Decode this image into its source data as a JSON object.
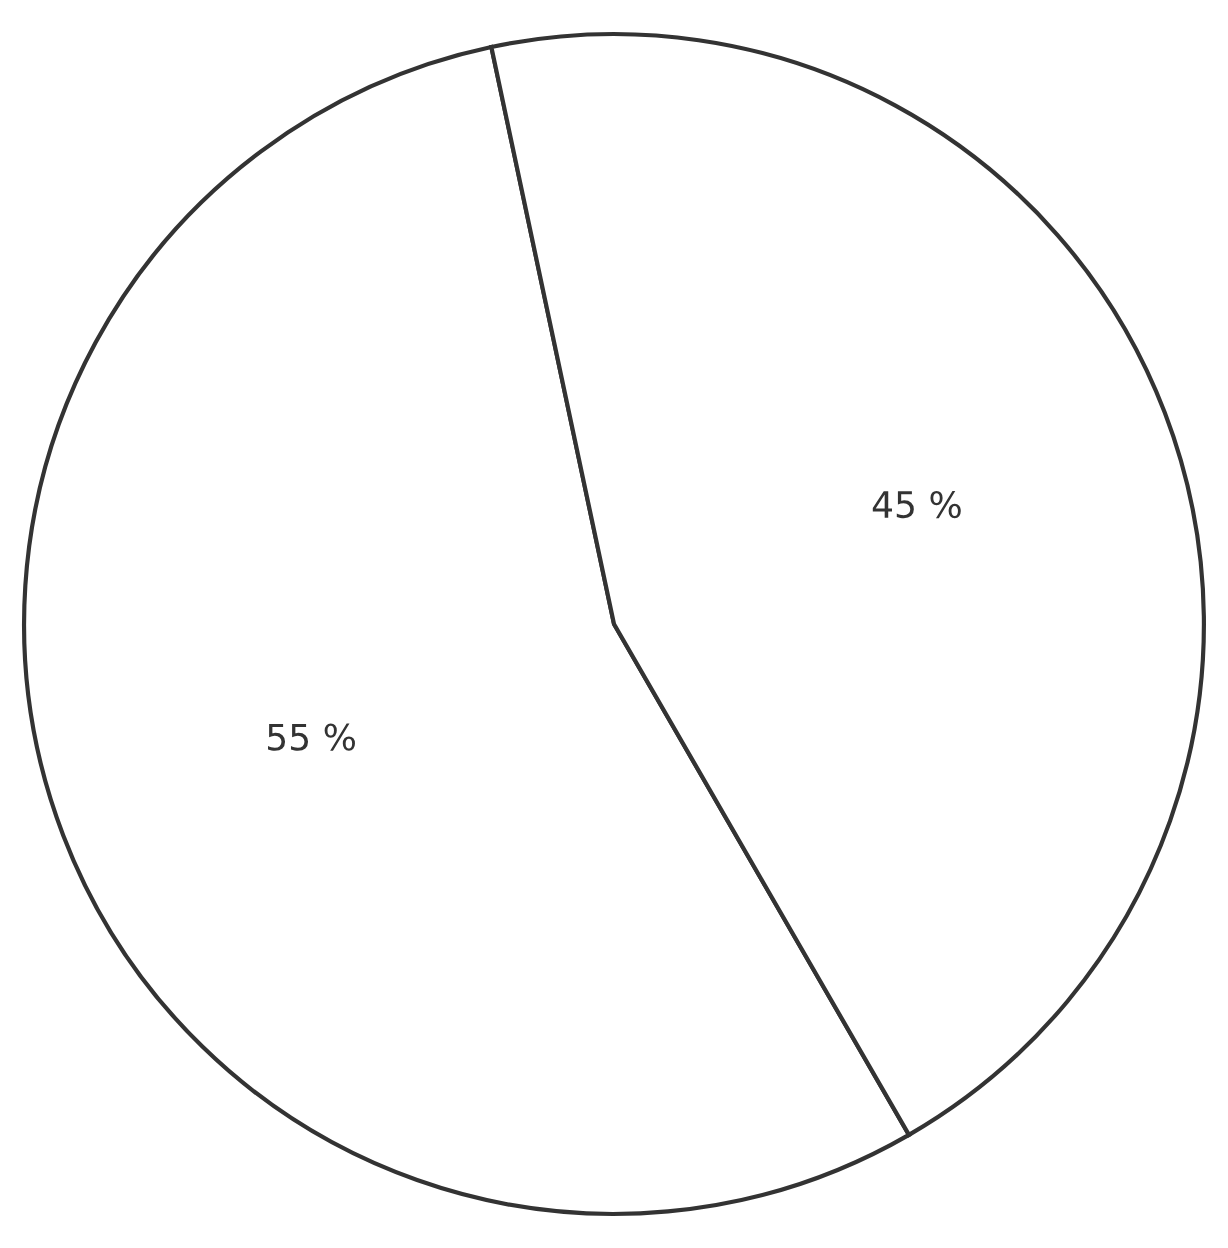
{
  "chart_data": {
    "type": "pie",
    "categories": [
      null,
      null
    ],
    "values": [
      55,
      45
    ],
    "colors": [
      "#ffffff",
      "#ffffff"
    ],
    "value_labels": [
      "55 %",
      "45 %"
    ]
  }
}
